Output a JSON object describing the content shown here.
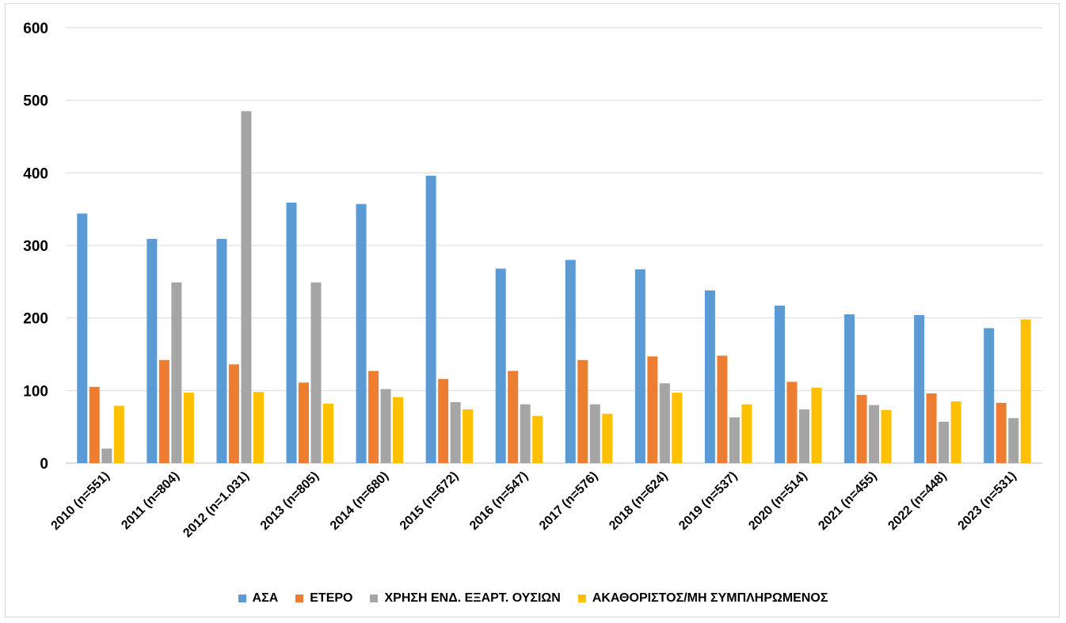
{
  "chart_data": {
    "type": "bar",
    "title": "",
    "xlabel": "",
    "ylabel": "",
    "ylim": [
      0,
      600
    ],
    "yticks": [
      0,
      100,
      200,
      300,
      400,
      500,
      600
    ],
    "grid": true,
    "legend_position": "bottom",
    "categories": [
      "2010 (n=551)",
      "2011 (n=804)",
      "2012 (n=1.031)",
      "2013 (n=805)",
      "2014 (n=680)",
      "2015 (n=672)",
      "2016 (n=547)",
      "2017 (n=576)",
      "2018 (n=624)",
      "2019 (n=537)",
      "2020 (n=514)",
      "2021 (n=455)",
      "2022 (n=448)",
      "2023 (n=531)"
    ],
    "series": [
      {
        "name": "ΑΣΑ",
        "color": "#5b9bd5",
        "values": [
          344,
          309,
          309,
          359,
          357,
          396,
          268,
          280,
          267,
          238,
          217,
          205,
          204,
          186
        ]
      },
      {
        "name": "ΕΤΕΡΟ",
        "color": "#ed7d31",
        "values": [
          105,
          142,
          136,
          111,
          127,
          116,
          127,
          142,
          147,
          148,
          112,
          94,
          96,
          83
        ]
      },
      {
        "name": "ΧΡΗΣΗ ΕΝΔ. ΕΞΑΡΤ. ΟΥΣΙΩΝ",
        "color": "#a5a5a5",
        "values": [
          20,
          249,
          485,
          249,
          102,
          84,
          81,
          81,
          110,
          63,
          74,
          80,
          57,
          62
        ]
      },
      {
        "name": "ΑΚΑΘΟΡΙΣΤΟΣ/ΜΗ ΣΥΜΠΛΗΡΩΜΕΝΟΣ",
        "color": "#ffc000",
        "values": [
          79,
          97,
          98,
          82,
          91,
          74,
          65,
          68,
          97,
          81,
          104,
          73,
          85,
          198
        ]
      }
    ]
  }
}
